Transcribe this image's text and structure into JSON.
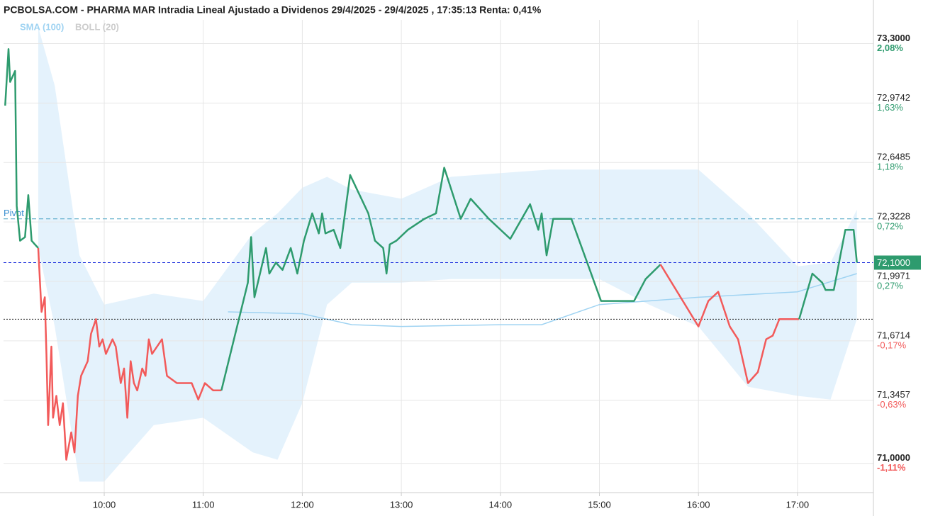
{
  "chart_data": {
    "type": "line",
    "title": "PCBOLSA.COM - PHARMA MAR Intradia Lineal Ajustado a Dividenos 29/4/2025 - 29/4/2025 , 17:35:13 Renta: 0,41%",
    "xlim": [
      "08:59",
      "17:46"
    ],
    "xticks": [
      "10:00",
      "11:00",
      "12:00",
      "13:00",
      "14:00",
      "15:00",
      "16:00",
      "17:00"
    ],
    "ylim": [
      70.84,
      73.43
    ],
    "yticks": [
      {
        "value": 73.3,
        "label": "73,3000",
        "pct": "2,08%"
      },
      {
        "value": 72.9742,
        "label": "72,9742",
        "pct": "1,63%"
      },
      {
        "value": 72.6485,
        "label": "72,6485",
        "pct": "1,18%"
      },
      {
        "value": 72.3228,
        "label": "72,3228",
        "pct": "0,72%"
      },
      {
        "value": 71.9971,
        "label": "71,9971",
        "pct": "0,27%"
      },
      {
        "value": 71.6714,
        "label": "71,6714",
        "pct": "-0,17%"
      },
      {
        "value": 71.3457,
        "label": "71,3457",
        "pct": "-0,63%"
      },
      {
        "value": 71.0,
        "label": "71,0000",
        "pct": "-1,11%"
      }
    ],
    "grid": true,
    "previous_close": 71.79,
    "pivot": {
      "label": "Pivot",
      "value": 72.34,
      "color": "#4aa3c4"
    },
    "last_price": {
      "value": 72.1,
      "label": "72,1000",
      "color": "#2e9b6e"
    },
    "up_color": "#2e9b6e",
    "down_color": "#f25a5a",
    "band": {
      "name": "BOLL (20)",
      "color": "#ddeffb",
      "legend_color": "#cccccc",
      "x": [
        "09:20",
        "09:30",
        "09:45",
        "10:00",
        "10:30",
        "11:00",
        "11:30",
        "11:45",
        "12:00",
        "12:15",
        "12:30",
        "13:00",
        "13:30",
        "14:00",
        "14:30",
        "15:00",
        "15:30",
        "16:00",
        "16:30",
        "17:00",
        "17:20",
        "17:36"
      ],
      "upper": [
        73.39,
        73.07,
        72.14,
        71.87,
        71.93,
        71.89,
        72.26,
        72.37,
        72.51,
        72.57,
        72.5,
        72.45,
        72.57,
        72.59,
        72.61,
        72.61,
        72.61,
        72.61,
        72.37,
        72.08,
        72.1,
        72.39
      ],
      "lower": [
        72.18,
        71.75,
        70.9,
        70.9,
        71.21,
        71.25,
        71.06,
        71.02,
        71.33,
        71.87,
        71.99,
        71.99,
        72.01,
        72.01,
        72.01,
        72.01,
        71.87,
        71.75,
        71.42,
        71.37,
        71.35,
        71.79
      ]
    },
    "sma": {
      "name": "SMA (100)",
      "color": "#9fd3f2",
      "x": [
        "11:15",
        "12:00",
        "12:30",
        "13:00",
        "14:00",
        "14:25",
        "15:00",
        "16:00",
        "17:00",
        "17:36"
      ],
      "values": [
        71.83,
        71.82,
        71.76,
        71.75,
        71.76,
        71.76,
        71.87,
        71.91,
        71.94,
        72.04
      ]
    },
    "series": [
      {
        "color": "#2e9b6e",
        "x": [
          "09:00",
          "09:02",
          "09:03",
          "09:06",
          "09:07",
          "09:09",
          "09:12",
          "09:14",
          "09:16",
          "09:18",
          "09:20"
        ],
        "values": [
          72.96,
          73.27,
          73.09,
          73.15,
          72.41,
          72.22,
          72.24,
          72.47,
          72.22,
          72.2,
          72.18
        ]
      },
      {
        "color": "#f25a5a",
        "x": [
          "09:20",
          "09:22",
          "09:24",
          "09:25",
          "09:26",
          "09:28",
          "09:29",
          "09:31",
          "09:33",
          "09:35",
          "09:37",
          "09:40",
          "09:42",
          "09:44",
          "09:46",
          "09:50",
          "09:52",
          "09:55",
          "09:57",
          "09:59",
          "10:01",
          "10:05",
          "10:07",
          "10:10",
          "10:12",
          "10:14",
          "10:16",
          "10:18",
          "10:20",
          "10:23",
          "10:25",
          "10:27",
          "10:29",
          "10:35",
          "10:38",
          "10:44",
          "10:53",
          "10:57",
          "11:01",
          "11:06",
          "11:11"
        ],
        "values": [
          72.18,
          71.83,
          71.91,
          71.6,
          71.21,
          71.64,
          71.25,
          71.37,
          71.21,
          71.33,
          71.02,
          71.17,
          71.06,
          71.37,
          71.48,
          71.56,
          71.71,
          71.79,
          71.64,
          71.68,
          71.6,
          71.68,
          71.64,
          71.44,
          71.52,
          71.25,
          71.56,
          71.44,
          71.4,
          71.52,
          71.48,
          71.68,
          71.6,
          71.68,
          71.48,
          71.44,
          71.44,
          71.35,
          71.44,
          71.4,
          71.4
        ]
      },
      {
        "color": "#2e9b6e",
        "x": [
          "11:11",
          "11:27",
          "11:29",
          "11:31",
          "11:38",
          "11:40",
          "11:44",
          "11:48",
          "11:53",
          "11:57",
          "12:01",
          "12:06",
          "12:10",
          "12:12",
          "12:14",
          "12:19",
          "12:23",
          "12:29",
          "12:40",
          "12:44",
          "12:49",
          "12:51",
          "12:53",
          "12:57",
          "13:04",
          "13:14",
          "13:21",
          "13:26",
          "13:36",
          "13:42",
          "13:53",
          "14:06",
          "14:18",
          "14:23",
          "14:25",
          "14:28",
          "14:32",
          "14:43",
          "14:53",
          "15:01",
          "15:21",
          "15:28",
          "15:37"
        ],
        "values": [
          71.4,
          71.99,
          72.24,
          71.91,
          72.18,
          72.04,
          72.1,
          72.06,
          72.18,
          72.04,
          72.22,
          72.37,
          72.26,
          72.37,
          72.26,
          72.28,
          72.18,
          72.58,
          72.37,
          72.22,
          72.18,
          72.04,
          72.2,
          72.22,
          72.28,
          72.34,
          72.37,
          72.62,
          72.34,
          72.45,
          72.34,
          72.23,
          72.42,
          72.28,
          72.37,
          72.14,
          72.34,
          72.34,
          72.09,
          71.89,
          71.89,
          72.01,
          72.09
        ]
      },
      {
        "color": "#f25a5a",
        "x": [
          "15:37",
          "16:00",
          "16:06",
          "16:12",
          "16:19",
          "16:24",
          "16:30",
          "16:36",
          "16:41",
          "16:45",
          "16:49",
          "17:01"
        ],
        "values": [
          72.09,
          71.75,
          71.89,
          71.94,
          71.75,
          71.68,
          71.44,
          71.5,
          71.68,
          71.7,
          71.79,
          71.79
        ]
      },
      {
        "color": "#2e9b6e",
        "x": [
          "17:01",
          "17:09",
          "17:15",
          "17:17",
          "17:22",
          "17:29",
          "17:34",
          "17:36"
        ],
        "values": [
          71.79,
          72.04,
          71.99,
          71.95,
          71.95,
          72.28,
          72.28,
          72.1
        ]
      }
    ]
  }
}
